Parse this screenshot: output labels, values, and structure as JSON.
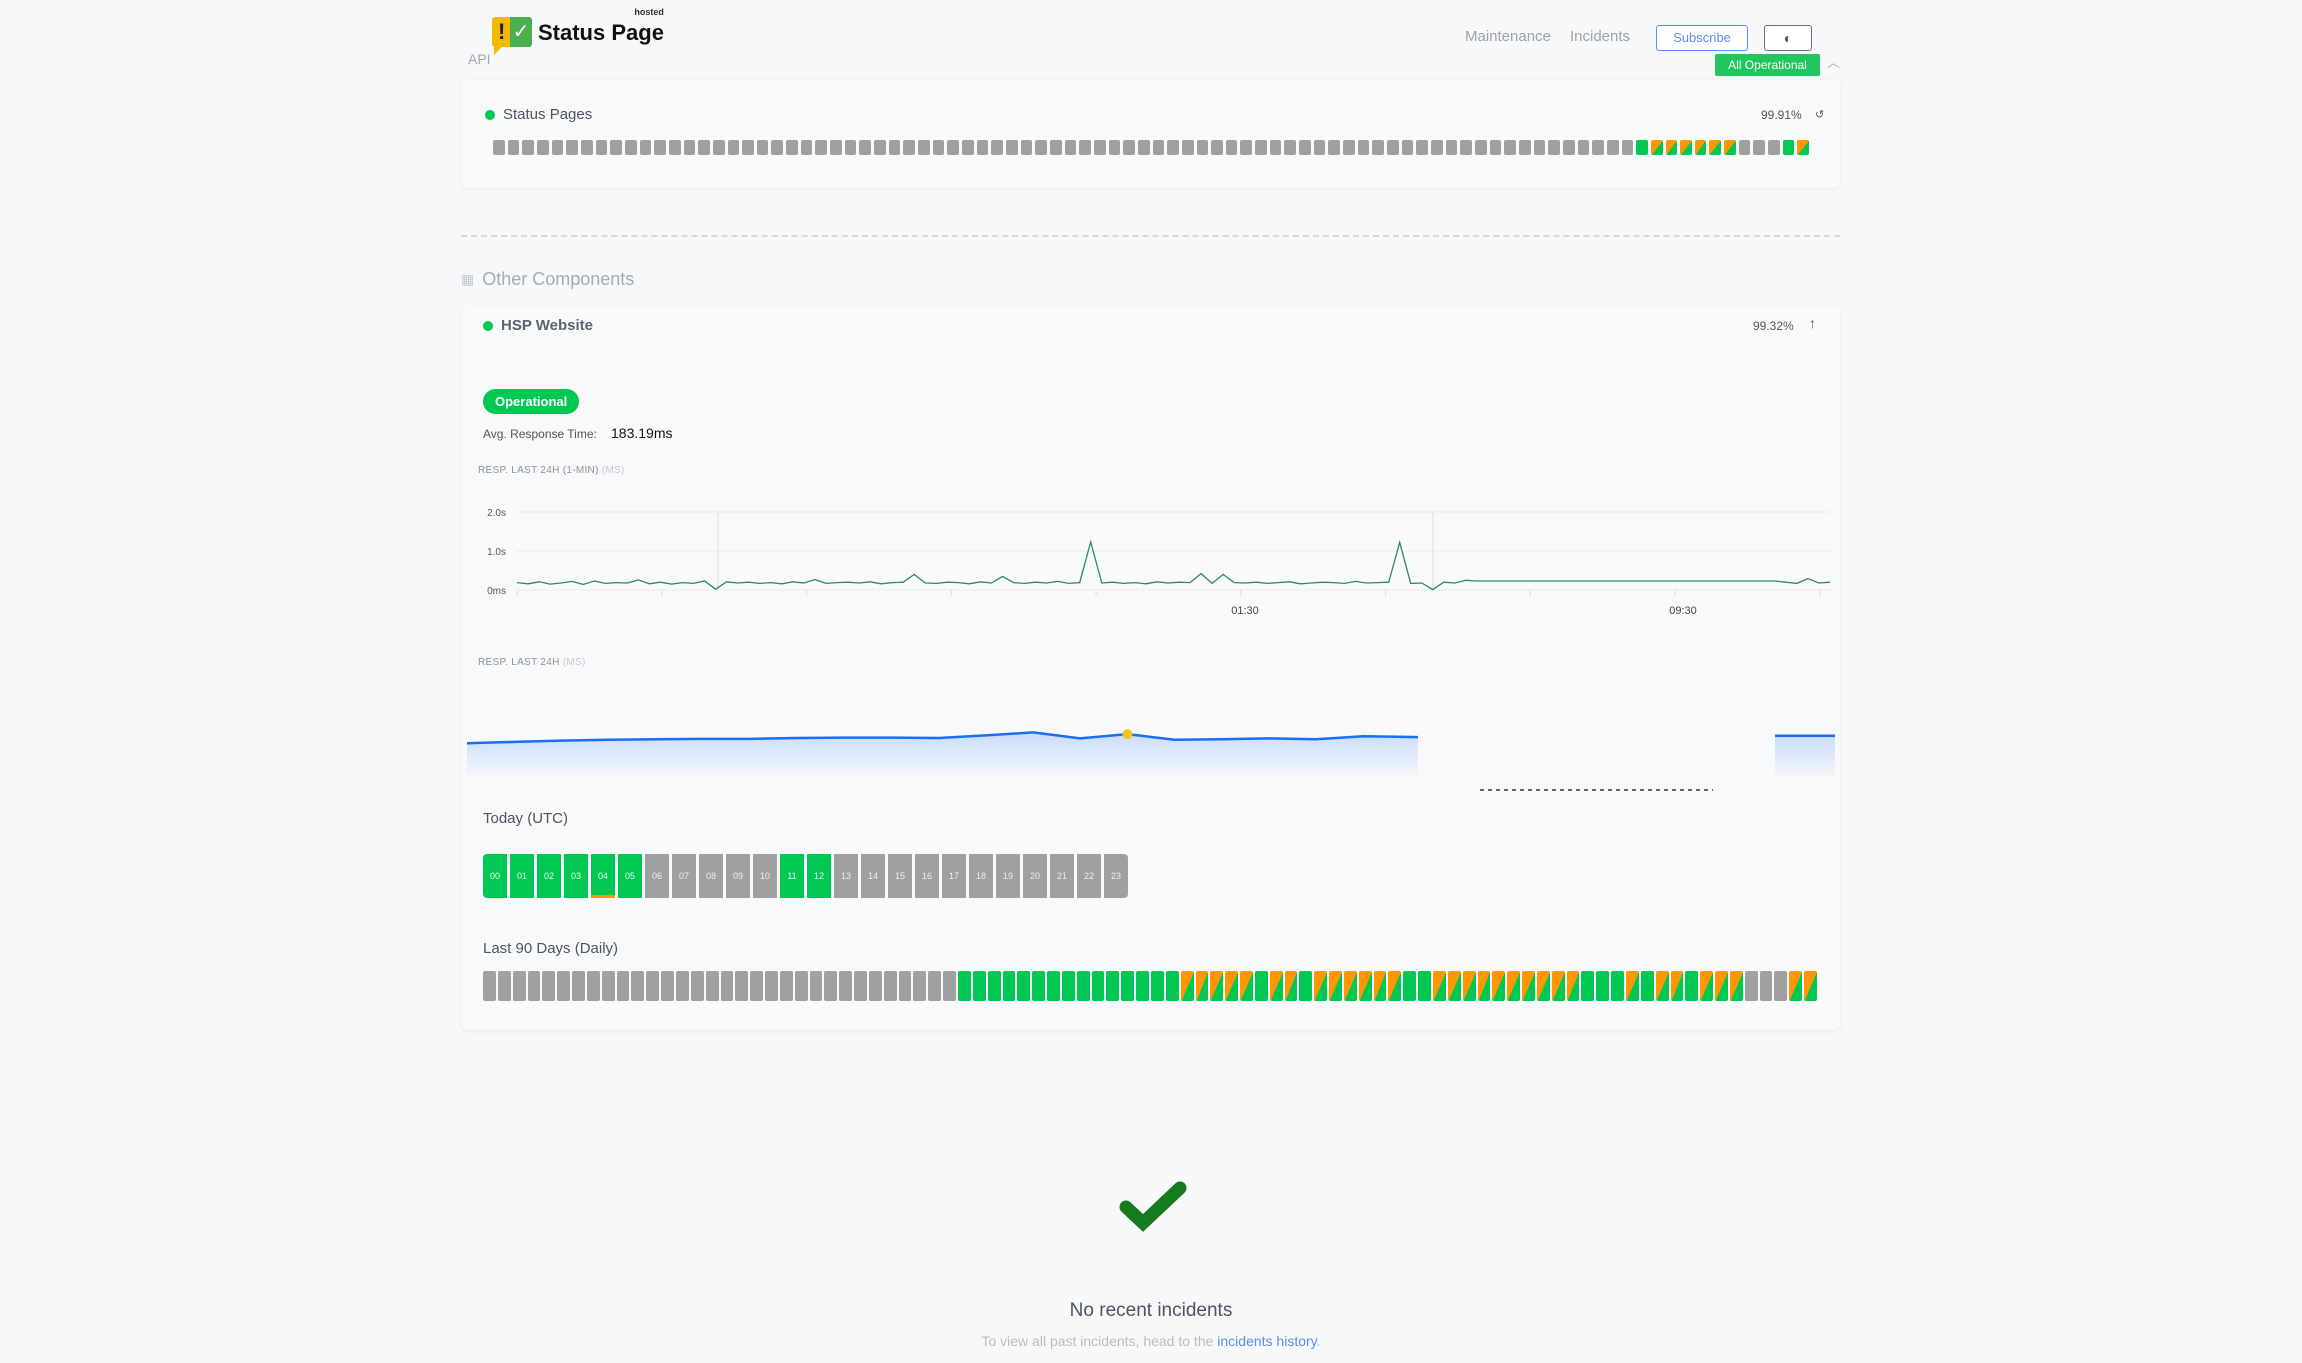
{
  "header": {
    "logo_text": "Status Page",
    "logo_hosted": "hosted",
    "api_label": "API",
    "nav": [
      "Maintenance",
      "Incidents"
    ],
    "subscribe": "Subscribe",
    "theme_icon": "contrast-icon",
    "overall_status": "All Operational"
  },
  "status_pages": {
    "name": "Status Pages",
    "uptime": "99.91%",
    "days": [
      "none",
      "none",
      "none",
      "none",
      "none",
      "none",
      "none",
      "none",
      "none",
      "none",
      "none",
      "none",
      "none",
      "none",
      "none",
      "none",
      "none",
      "none",
      "none",
      "none",
      "none",
      "none",
      "none",
      "none",
      "none",
      "none",
      "none",
      "none",
      "none",
      "none",
      "none",
      "none",
      "none",
      "none",
      "none",
      "none",
      "none",
      "none",
      "none",
      "none",
      "none",
      "none",
      "none",
      "none",
      "none",
      "none",
      "none",
      "none",
      "none",
      "none",
      "none",
      "none",
      "none",
      "none",
      "none",
      "none",
      "none",
      "none",
      "none",
      "none",
      "none",
      "none",
      "none",
      "none",
      "none",
      "none",
      "none",
      "none",
      "none",
      "none",
      "none",
      "none",
      "none",
      "none",
      "none",
      "none",
      "none",
      "none",
      "up",
      "mixed",
      "mixed",
      "mixed",
      "mixed",
      "mixed",
      "mixed",
      "none",
      "none",
      "none",
      "up",
      "mixed"
    ]
  },
  "other": {
    "section_title": "Other Components",
    "hsp": {
      "name": "HSP Website",
      "uptime": "99.32%",
      "status": "Operational",
      "avg_label": "Avg. Response Time:",
      "avg_value": "183.19ms",
      "chart1_label": "RESP. LAST 24H (1-MIN)",
      "chart1_unit": "(MS)",
      "chart2_label": "RESP. LAST 24H",
      "chart2_unit": "(MS)",
      "today_label": "Today (UTC)",
      "last90_label": "Last 90 Days (Daily)",
      "hours": [
        {
          "h": "00",
          "s": "up"
        },
        {
          "h": "01",
          "s": "up"
        },
        {
          "h": "02",
          "s": "up"
        },
        {
          "h": "03",
          "s": "up"
        },
        {
          "h": "04",
          "s": "up",
          "degraded": true
        },
        {
          "h": "05",
          "s": "up"
        },
        {
          "h": "06",
          "s": "none"
        },
        {
          "h": "07",
          "s": "none"
        },
        {
          "h": "08",
          "s": "none"
        },
        {
          "h": "09",
          "s": "none"
        },
        {
          "h": "10",
          "s": "none"
        },
        {
          "h": "11",
          "s": "up"
        },
        {
          "h": "12",
          "s": "up"
        },
        {
          "h": "13",
          "s": "none"
        },
        {
          "h": "14",
          "s": "none"
        },
        {
          "h": "15",
          "s": "none"
        },
        {
          "h": "16",
          "s": "none"
        },
        {
          "h": "17",
          "s": "none"
        },
        {
          "h": "18",
          "s": "none"
        },
        {
          "h": "19",
          "s": "none"
        },
        {
          "h": "20",
          "s": "none"
        },
        {
          "h": "21",
          "s": "none"
        },
        {
          "h": "22",
          "s": "none"
        },
        {
          "h": "23",
          "s": "none"
        }
      ],
      "days": [
        "none",
        "none",
        "none",
        "none",
        "none",
        "none",
        "none",
        "none",
        "none",
        "none",
        "none",
        "none",
        "none",
        "none",
        "none",
        "none",
        "none",
        "none",
        "none",
        "none",
        "none",
        "none",
        "none",
        "none",
        "none",
        "none",
        "none",
        "none",
        "none",
        "none",
        "none",
        "none",
        "up",
        "up",
        "up",
        "up",
        "up",
        "up",
        "up",
        "up",
        "up",
        "up",
        "up",
        "up",
        "up",
        "up",
        "up",
        "mixed",
        "mixed",
        "mixed",
        "mixed",
        "mixed",
        "up",
        "mixed",
        "mixed",
        "up",
        "mixed",
        "mixed",
        "mixed",
        "mixed",
        "mixed",
        "mixed",
        "up",
        "up",
        "mixed",
        "mixed",
        "mixed",
        "mixed",
        "mixed",
        "mixed",
        "mixed",
        "mixed",
        "mixed",
        "mixed",
        "up",
        "up",
        "up",
        "mixed",
        "up",
        "mixed",
        "mixed",
        "up",
        "mixed",
        "mixed",
        "mixed",
        "none",
        "none",
        "none",
        "mixed",
        "mixed"
      ]
    }
  },
  "chart_data": [
    {
      "type": "line",
      "title": "RESP. LAST 24H (1-MIN) (MS)",
      "y_ticks": [
        "0ms",
        "1.0s",
        "2.0s"
      ],
      "ylim": [
        0,
        2000
      ],
      "x_ticks": [
        "01:30",
        "09:30"
      ],
      "color": "#2e8b57",
      "values": [
        190,
        160,
        210,
        150,
        180,
        220,
        140,
        230,
        170,
        190,
        180,
        260,
        160,
        200,
        150,
        190,
        170,
        230,
        20,
        210,
        180,
        200,
        170,
        190,
        160,
        210,
        180,
        270,
        170,
        190,
        200,
        180,
        210,
        160,
        190,
        200,
        400,
        180,
        170,
        200,
        190,
        160,
        210,
        180,
        350,
        190,
        170,
        200,
        180,
        220,
        170,
        190,
        1230,
        180,
        200,
        170,
        190,
        160,
        210,
        180,
        200,
        190,
        420,
        170,
        400,
        190,
        180,
        200,
        170,
        190,
        210,
        160,
        180,
        200,
        190,
        170,
        220,
        180,
        190,
        200,
        1220,
        170,
        180,
        10,
        200,
        180,
        250,
        230,
        230,
        230,
        230,
        230,
        230,
        230,
        230,
        230,
        230,
        230,
        230,
        230,
        230,
        230,
        230,
        230,
        230,
        230,
        230,
        230,
        230,
        230,
        230,
        230,
        230,
        230,
        230,
        200,
        170,
        290,
        180,
        200
      ]
    },
    {
      "type": "area",
      "title": "RESP. LAST 24H (MS)",
      "color": "#1a6ef5",
      "highlight_color": "#f5c518",
      "highlight_index": 14,
      "values": [
        178,
        181,
        184,
        186,
        187,
        188,
        188,
        190,
        191,
        191,
        190,
        196,
        203,
        189,
        199,
        186,
        187,
        189,
        187,
        194,
        192,
        null,
        null,
        null,
        null,
        null,
        null,
        null,
        195,
        195
      ]
    }
  ],
  "incidents": {
    "title": "No recent incidents",
    "text": "To view all past incidents, head to the",
    "link": "incidents history",
    "end": "."
  }
}
